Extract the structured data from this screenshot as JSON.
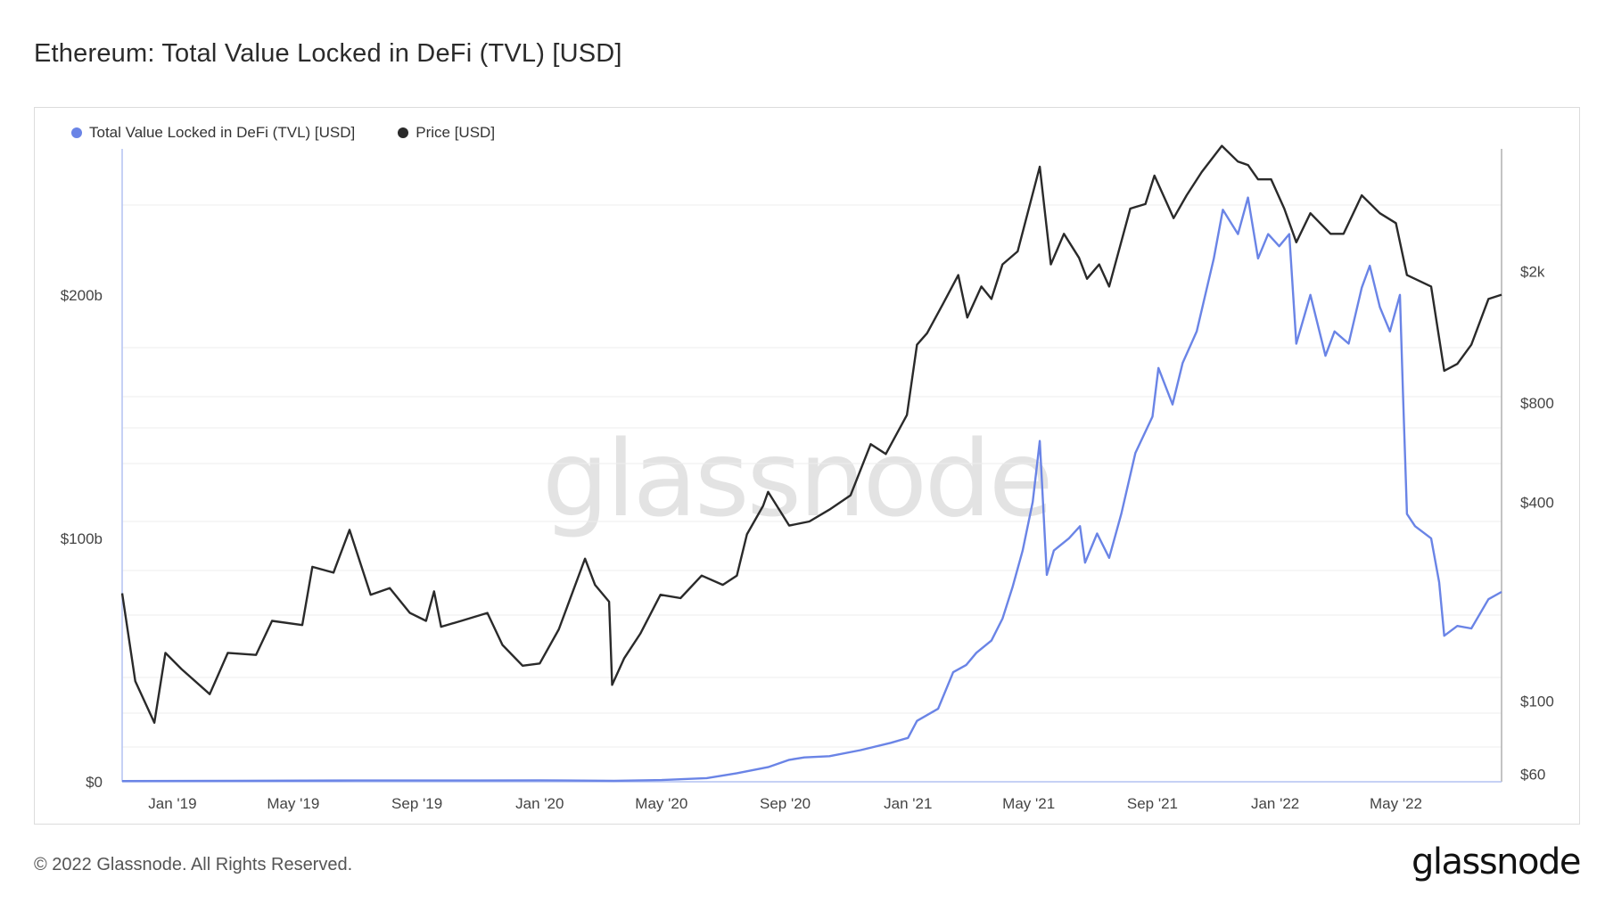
{
  "title": "Ethereum: Total Value Locked in DeFi (TVL) [USD]",
  "footer": "© 2022 Glassnode. All Rights Reserved.",
  "brand": "glassnode",
  "watermark": "glassnode",
  "colors": {
    "tvl": "#6a84e6",
    "price": "#2a2a2a",
    "grid": "#ececec",
    "axis": "#b4c2f2"
  },
  "chart_data": {
    "type": "line",
    "title": "Ethereum: Total Value Locked in DeFi (TVL) [USD]",
    "x_ticks": [
      "Jan '19",
      "May '19",
      "Sep '19",
      "Jan '20",
      "May '20",
      "Sep '20",
      "Jan '21",
      "May '21",
      "Sep '21",
      "Jan '22",
      "May '22"
    ],
    "x_range": [
      "2018-11-12",
      "2022-08-14"
    ],
    "y_left": {
      "scale": "linear",
      "range": [
        0,
        260
      ],
      "ticks": [
        "$0",
        "$100b",
        "$200b"
      ],
      "tick_values": [
        0,
        100,
        200
      ],
      "unit": "billion USD"
    },
    "y_right": {
      "scale": "log",
      "range": [
        57,
        4700
      ],
      "ticks": [
        "$60",
        "$100",
        "$400",
        "$800",
        "$2k"
      ],
      "tick_values": [
        60,
        100,
        400,
        800,
        2000
      ],
      "unit": "USD"
    },
    "grid": true,
    "legend_position": "top-left",
    "series": [
      {
        "name": "Total Value Locked in DeFi (TVL) [USD]",
        "axis": "left",
        "points": [
          [
            "2018-11-12",
            0.3
          ],
          [
            "2019-03-01",
            0.4
          ],
          [
            "2019-07-01",
            0.5
          ],
          [
            "2019-11-01",
            0.5
          ],
          [
            "2020-01-01",
            0.6
          ],
          [
            "2020-03-15",
            0.4
          ],
          [
            "2020-05-01",
            0.7
          ],
          [
            "2020-06-15",
            1.5
          ],
          [
            "2020-07-15",
            3.5
          ],
          [
            "2020-08-15",
            6
          ],
          [
            "2020-09-05",
            9
          ],
          [
            "2020-09-20",
            10
          ],
          [
            "2020-10-15",
            10.5
          ],
          [
            "2020-11-15",
            13
          ],
          [
            "2020-12-15",
            16
          ],
          [
            "2021-01-01",
            18
          ],
          [
            "2021-01-10",
            25
          ],
          [
            "2021-01-31",
            30
          ],
          [
            "2021-02-15",
            45
          ],
          [
            "2021-02-28",
            48
          ],
          [
            "2021-03-10",
            53
          ],
          [
            "2021-03-25",
            58
          ],
          [
            "2021-04-05",
            67
          ],
          [
            "2021-04-15",
            80
          ],
          [
            "2021-04-25",
            95
          ],
          [
            "2021-05-05",
            115
          ],
          [
            "2021-05-12",
            140
          ],
          [
            "2021-05-19",
            85
          ],
          [
            "2021-05-26",
            95
          ],
          [
            "2021-06-10",
            100
          ],
          [
            "2021-06-21",
            105
          ],
          [
            "2021-06-26",
            90
          ],
          [
            "2021-07-08",
            102
          ],
          [
            "2021-07-20",
            92
          ],
          [
            "2021-08-01",
            110
          ],
          [
            "2021-08-15",
            135
          ],
          [
            "2021-09-01",
            150
          ],
          [
            "2021-09-07",
            170
          ],
          [
            "2021-09-21",
            155
          ],
          [
            "2021-10-01",
            172
          ],
          [
            "2021-10-15",
            185
          ],
          [
            "2021-11-01",
            215
          ],
          [
            "2021-11-10",
            235
          ],
          [
            "2021-11-25",
            225
          ],
          [
            "2021-12-05",
            240
          ],
          [
            "2021-12-15",
            215
          ],
          [
            "2021-12-25",
            225
          ],
          [
            "2022-01-05",
            220
          ],
          [
            "2022-01-15",
            225
          ],
          [
            "2022-01-22",
            180
          ],
          [
            "2022-02-05",
            200
          ],
          [
            "2022-02-20",
            175
          ],
          [
            "2022-03-01",
            185
          ],
          [
            "2022-03-15",
            180
          ],
          [
            "2022-03-28",
            203
          ],
          [
            "2022-04-05",
            212
          ],
          [
            "2022-04-15",
            195
          ],
          [
            "2022-04-25",
            185
          ],
          [
            "2022-05-05",
            200
          ],
          [
            "2022-05-08",
            160
          ],
          [
            "2022-05-12",
            110
          ],
          [
            "2022-05-20",
            105
          ],
          [
            "2022-06-05",
            100
          ],
          [
            "2022-06-13",
            82
          ],
          [
            "2022-06-18",
            60
          ],
          [
            "2022-07-01",
            64
          ],
          [
            "2022-07-15",
            63
          ],
          [
            "2022-08-01",
            75
          ],
          [
            "2022-08-14",
            78
          ]
        ]
      },
      {
        "name": "Price [USD]",
        "axis": "right",
        "points": [
          [
            "2018-11-12",
            212
          ],
          [
            "2018-11-25",
            115
          ],
          [
            "2018-12-14",
            86
          ],
          [
            "2018-12-25",
            140
          ],
          [
            "2019-01-10",
            125
          ],
          [
            "2019-02-07",
            105
          ],
          [
            "2019-02-25",
            140
          ],
          [
            "2019-03-25",
            138
          ],
          [
            "2019-04-10",
            175
          ],
          [
            "2019-05-10",
            170
          ],
          [
            "2019-05-20",
            255
          ],
          [
            "2019-06-10",
            245
          ],
          [
            "2019-06-26",
            330
          ],
          [
            "2019-07-17",
            210
          ],
          [
            "2019-08-05",
            220
          ],
          [
            "2019-08-25",
            185
          ],
          [
            "2019-09-10",
            175
          ],
          [
            "2019-09-18",
            215
          ],
          [
            "2019-09-25",
            168
          ],
          [
            "2019-10-15",
            175
          ],
          [
            "2019-11-10",
            185
          ],
          [
            "2019-11-25",
            148
          ],
          [
            "2019-12-15",
            128
          ],
          [
            "2020-01-01",
            130
          ],
          [
            "2020-01-20",
            165
          ],
          [
            "2020-02-15",
            270
          ],
          [
            "2020-02-25",
            225
          ],
          [
            "2020-03-10",
            200
          ],
          [
            "2020-03-13",
            112
          ],
          [
            "2020-03-25",
            135
          ],
          [
            "2020-04-10",
            160
          ],
          [
            "2020-04-30",
            210
          ],
          [
            "2020-05-20",
            205
          ],
          [
            "2020-06-10",
            240
          ],
          [
            "2020-07-01",
            225
          ],
          [
            "2020-07-15",
            240
          ],
          [
            "2020-07-25",
            320
          ],
          [
            "2020-08-10",
            390
          ],
          [
            "2020-08-15",
            430
          ],
          [
            "2020-09-05",
            340
          ],
          [
            "2020-09-25",
            350
          ],
          [
            "2020-10-15",
            380
          ],
          [
            "2020-11-05",
            420
          ],
          [
            "2020-11-25",
            600
          ],
          [
            "2020-12-10",
            560
          ],
          [
            "2020-12-31",
            735
          ],
          [
            "2021-01-10",
            1200
          ],
          [
            "2021-01-20",
            1300
          ],
          [
            "2021-02-05",
            1600
          ],
          [
            "2021-02-20",
            1950
          ],
          [
            "2021-03-01",
            1450
          ],
          [
            "2021-03-15",
            1800
          ],
          [
            "2021-03-25",
            1650
          ],
          [
            "2021-04-05",
            2100
          ],
          [
            "2021-04-20",
            2300
          ],
          [
            "2021-05-12",
            4150
          ],
          [
            "2021-05-23",
            2100
          ],
          [
            "2021-06-05",
            2600
          ],
          [
            "2021-06-20",
            2200
          ],
          [
            "2021-06-28",
            1900
          ],
          [
            "2021-07-10",
            2100
          ],
          [
            "2021-07-20",
            1800
          ],
          [
            "2021-08-10",
            3100
          ],
          [
            "2021-08-25",
            3200
          ],
          [
            "2021-09-03",
            3900
          ],
          [
            "2021-09-22",
            2900
          ],
          [
            "2021-10-05",
            3400
          ],
          [
            "2021-10-20",
            4000
          ],
          [
            "2021-11-09",
            4800
          ],
          [
            "2021-11-25",
            4300
          ],
          [
            "2021-12-05",
            4200
          ],
          [
            "2021-12-15",
            3800
          ],
          [
            "2021-12-28",
            3800
          ],
          [
            "2022-01-10",
            3100
          ],
          [
            "2022-01-22",
            2450
          ],
          [
            "2022-02-05",
            3000
          ],
          [
            "2022-02-25",
            2600
          ],
          [
            "2022-03-10",
            2600
          ],
          [
            "2022-03-28",
            3400
          ],
          [
            "2022-04-15",
            3000
          ],
          [
            "2022-05-01",
            2800
          ],
          [
            "2022-05-12",
            1950
          ],
          [
            "2022-06-05",
            1800
          ],
          [
            "2022-06-18",
            1000
          ],
          [
            "2022-07-01",
            1050
          ],
          [
            "2022-07-15",
            1200
          ],
          [
            "2022-08-01",
            1650
          ],
          [
            "2022-08-14",
            1700
          ]
        ]
      }
    ]
  }
}
